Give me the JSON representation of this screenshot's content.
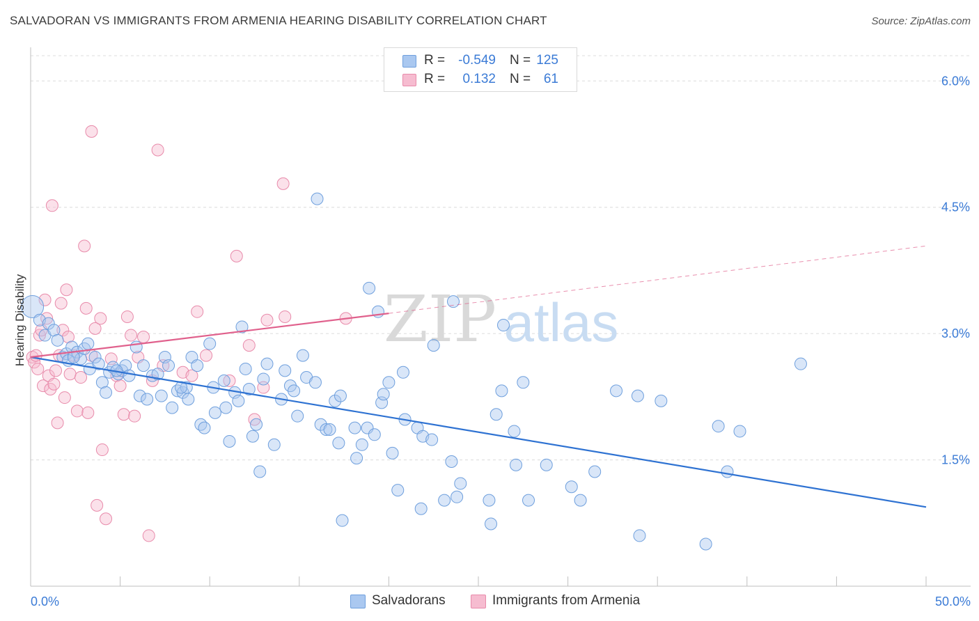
{
  "header": {
    "title": "SALVADORAN VS IMMIGRANTS FROM ARMENIA HEARING DISABILITY CORRELATION CHART",
    "source": "Source: ZipAtlas.com"
  },
  "legend": {
    "rows": [
      {
        "r_label": "R =",
        "r_value": "-0.549",
        "n_label": "N =",
        "n_value": "125"
      },
      {
        "r_label": "R =",
        "r_value": "0.132",
        "n_label": "N =",
        "n_value": "61"
      }
    ]
  },
  "bottom_legend": {
    "series1": "Salvadorans",
    "series2": "Immigrants from Armenia"
  },
  "watermark": {
    "zip": "ZIP",
    "atlas": "atlas"
  },
  "colors": {
    "blue_fill": "#aac8f0",
    "blue_stroke": "#6e9fdd",
    "blue_line": "#2e72d2",
    "pink_fill": "#f6bcd0",
    "pink_stroke": "#e88aaa",
    "pink_line": "#e0608c",
    "tick_label": "#3b7bd6"
  },
  "chart_data": {
    "type": "scatter",
    "title": "SALVADORAN VS IMMIGRANTS FROM ARMENIA HEARING DISABILITY CORRELATION CHART",
    "xlabel": "",
    "ylabel": "Hearing Disability",
    "xlim": [
      0,
      50
    ],
    "ylim": [
      0,
      6.3
    ],
    "x_tick_labels": [
      "0.0%",
      "50.0%"
    ],
    "y_ticks": [
      1.5,
      3.0,
      4.5,
      6.0
    ],
    "y_tick_labels": [
      "1.5%",
      "3.0%",
      "4.5%",
      "6.0%"
    ],
    "grid": true,
    "legend_position": "top-center",
    "series": [
      {
        "name": "Salvadorans",
        "r": -0.549,
        "n": 125,
        "trend": {
          "x0": 0,
          "y0": 2.72,
          "x1": 50,
          "y1": 0.94
        },
        "points": [
          [
            0.1,
            3.32
          ],
          [
            0.5,
            3.16
          ],
          [
            0.8,
            2.98
          ],
          [
            1.0,
            3.12
          ],
          [
            1.3,
            3.04
          ],
          [
            1.5,
            2.92
          ],
          [
            1.8,
            2.72
          ],
          [
            2.0,
            2.76
          ],
          [
            2.1,
            2.68
          ],
          [
            2.3,
            2.84
          ],
          [
            2.6,
            2.78
          ],
          [
            2.8,
            2.7
          ],
          [
            3.0,
            2.82
          ],
          [
            3.2,
            2.88
          ],
          [
            3.3,
            2.58
          ],
          [
            3.6,
            2.72
          ],
          [
            3.8,
            2.64
          ],
          [
            4.0,
            2.42
          ],
          [
            4.2,
            2.3
          ],
          [
            4.4,
            2.54
          ],
          [
            4.6,
            2.6
          ],
          [
            4.9,
            2.52
          ],
          [
            5.1,
            2.56
          ],
          [
            5.3,
            2.62
          ],
          [
            5.5,
            2.5
          ],
          [
            5.9,
            2.84
          ],
          [
            6.1,
            2.26
          ],
          [
            6.3,
            2.62
          ],
          [
            6.5,
            2.22
          ],
          [
            6.8,
            2.5
          ],
          [
            7.1,
            2.52
          ],
          [
            7.3,
            2.26
          ],
          [
            7.5,
            2.72
          ],
          [
            7.7,
            2.62
          ],
          [
            7.9,
            2.12
          ],
          [
            8.2,
            2.32
          ],
          [
            8.5,
            2.3
          ],
          [
            8.7,
            2.36
          ],
          [
            8.8,
            2.22
          ],
          [
            9.0,
            2.72
          ],
          [
            9.3,
            2.62
          ],
          [
            9.5,
            1.92
          ],
          [
            9.7,
            1.88
          ],
          [
            10.0,
            2.88
          ],
          [
            10.2,
            2.36
          ],
          [
            10.3,
            2.06
          ],
          [
            10.8,
            2.44
          ],
          [
            10.9,
            2.12
          ],
          [
            11.1,
            1.72
          ],
          [
            11.4,
            2.3
          ],
          [
            11.6,
            2.2
          ],
          [
            11.8,
            3.08
          ],
          [
            12.0,
            2.58
          ],
          [
            12.2,
            2.34
          ],
          [
            12.4,
            1.78
          ],
          [
            12.6,
            1.92
          ],
          [
            12.8,
            1.36
          ],
          [
            13.0,
            2.46
          ],
          [
            13.2,
            2.64
          ],
          [
            13.6,
            1.68
          ],
          [
            14.0,
            2.22
          ],
          [
            14.2,
            2.56
          ],
          [
            14.5,
            2.38
          ],
          [
            14.7,
            2.32
          ],
          [
            14.9,
            2.02
          ],
          [
            15.2,
            2.74
          ],
          [
            15.4,
            2.48
          ],
          [
            15.9,
            2.42
          ],
          [
            16.2,
            1.92
          ],
          [
            16.5,
            1.86
          ],
          [
            16.7,
            1.86
          ],
          [
            17.0,
            2.2
          ],
          [
            17.2,
            1.7
          ],
          [
            17.3,
            2.26
          ],
          [
            17.4,
            0.78
          ],
          [
            18.1,
            1.88
          ],
          [
            18.2,
            1.52
          ],
          [
            18.5,
            1.68
          ],
          [
            18.8,
            1.88
          ],
          [
            18.9,
            3.54
          ],
          [
            19.2,
            1.8
          ],
          [
            19.4,
            3.26
          ],
          [
            19.6,
            2.18
          ],
          [
            19.7,
            2.28
          ],
          [
            20.0,
            2.42
          ],
          [
            20.2,
            1.58
          ],
          [
            20.5,
            1.14
          ],
          [
            20.8,
            2.54
          ],
          [
            20.9,
            1.98
          ],
          [
            21.6,
            1.88
          ],
          [
            21.8,
            0.92
          ],
          [
            21.9,
            1.78
          ],
          [
            22.4,
            1.74
          ],
          [
            22.5,
            2.86
          ],
          [
            23.1,
            1.02
          ],
          [
            23.5,
            1.48
          ],
          [
            23.6,
            3.38
          ],
          [
            23.8,
            1.06
          ],
          [
            24.0,
            1.22
          ],
          [
            25.6,
            1.02
          ],
          [
            25.7,
            0.74
          ],
          [
            26.0,
            2.04
          ],
          [
            26.3,
            2.32
          ],
          [
            26.4,
            3.1
          ],
          [
            27.0,
            1.84
          ],
          [
            27.1,
            1.44
          ],
          [
            27.5,
            2.42
          ],
          [
            27.8,
            1.02
          ],
          [
            28.8,
            1.44
          ],
          [
            30.2,
            1.18
          ],
          [
            30.7,
            1.02
          ],
          [
            31.5,
            1.36
          ],
          [
            32.7,
            2.32
          ],
          [
            33.9,
            2.26
          ],
          [
            34.0,
            0.6
          ],
          [
            35.2,
            2.2
          ],
          [
            37.7,
            0.5
          ],
          [
            38.4,
            1.9
          ],
          [
            38.9,
            1.36
          ],
          [
            39.6,
            1.84
          ],
          [
            43.0,
            2.64
          ],
          [
            2.4,
            2.72
          ],
          [
            4.8,
            2.56
          ],
          [
            8.4,
            2.36
          ],
          [
            16.0,
            4.6
          ]
        ]
      },
      {
        "name": "Immigrants from Armenia",
        "r": 0.132,
        "n": 61,
        "trend": {
          "x0": 0,
          "y0": 2.72,
          "x1": 20.0,
          "y1": 3.24,
          "dashed_to_x": 50,
          "dashed_to_y": 4.04
        },
        "points": [
          [
            0.1,
            2.72
          ],
          [
            0.2,
            2.66
          ],
          [
            0.3,
            2.74
          ],
          [
            0.4,
            2.58
          ],
          [
            0.5,
            2.98
          ],
          [
            0.6,
            3.04
          ],
          [
            0.7,
            2.38
          ],
          [
            0.8,
            3.4
          ],
          [
            0.9,
            3.18
          ],
          [
            1.0,
            2.5
          ],
          [
            1.1,
            2.34
          ],
          [
            1.2,
            4.52
          ],
          [
            1.3,
            2.4
          ],
          [
            1.4,
            2.56
          ],
          [
            1.5,
            1.94
          ],
          [
            1.6,
            2.74
          ],
          [
            1.7,
            3.36
          ],
          [
            1.8,
            3.04
          ],
          [
            1.9,
            2.24
          ],
          [
            2.0,
            3.52
          ],
          [
            2.1,
            2.96
          ],
          [
            2.2,
            2.52
          ],
          [
            2.4,
            2.74
          ],
          [
            2.6,
            2.08
          ],
          [
            2.8,
            2.48
          ],
          [
            3.0,
            4.04
          ],
          [
            3.1,
            3.3
          ],
          [
            3.2,
            2.06
          ],
          [
            3.4,
            2.74
          ],
          [
            3.6,
            3.06
          ],
          [
            3.7,
            0.96
          ],
          [
            3.9,
            3.18
          ],
          [
            4.0,
            1.62
          ],
          [
            4.2,
            0.8
          ],
          [
            4.5,
            2.7
          ],
          [
            4.8,
            2.5
          ],
          [
            5.0,
            2.38
          ],
          [
            5.2,
            2.04
          ],
          [
            5.4,
            3.2
          ],
          [
            5.6,
            2.98
          ],
          [
            5.8,
            2.02
          ],
          [
            6.0,
            2.72
          ],
          [
            6.3,
            2.96
          ],
          [
            6.6,
            0.6
          ],
          [
            6.8,
            2.44
          ],
          [
            7.1,
            5.18
          ],
          [
            7.4,
            2.62
          ],
          [
            8.5,
            2.54
          ],
          [
            9.0,
            2.5
          ],
          [
            9.3,
            3.26
          ],
          [
            9.8,
            2.74
          ],
          [
            11.1,
            2.44
          ],
          [
            11.5,
            3.92
          ],
          [
            12.2,
            2.86
          ],
          [
            12.5,
            1.98
          ],
          [
            13.0,
            2.36
          ],
          [
            13.2,
            3.16
          ],
          [
            14.1,
            4.78
          ],
          [
            14.2,
            3.2
          ],
          [
            17.6,
            3.18
          ],
          [
            3.4,
            5.4
          ]
        ]
      }
    ]
  }
}
